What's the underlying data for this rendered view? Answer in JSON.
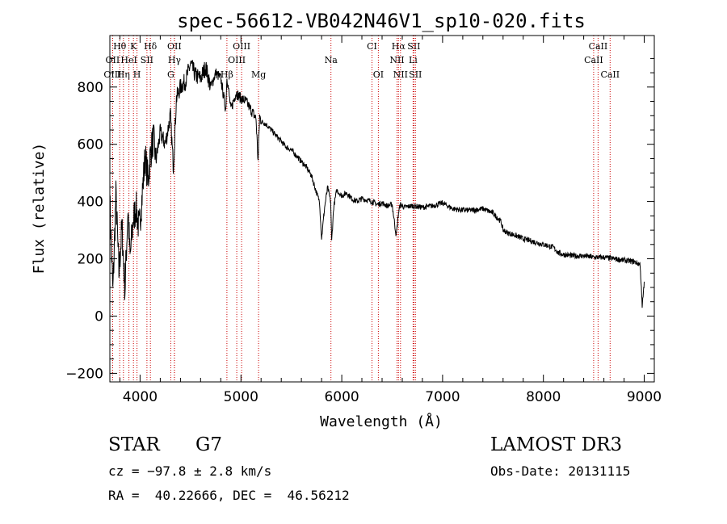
{
  "chart_data": {
    "type": "line",
    "title": "spec-56612-VB042N46V1_sp10-020.fits",
    "xlabel": "Wavelength (Å)",
    "ylabel": "Flux (relative)",
    "xlim": [
      3700,
      9100
    ],
    "ylim": [
      -230,
      980
    ],
    "xticks": [
      4000,
      5000,
      6000,
      7000,
      8000,
      9000
    ],
    "xtick_labels": [
      "4000",
      "5000",
      "6000",
      "7000",
      "8000",
      "9000"
    ],
    "yticks": [
      -200,
      0,
      200,
      400,
      600,
      800
    ],
    "ytick_labels": [
      "−200",
      "0",
      "200",
      "400",
      "600",
      "800"
    ],
    "series": [
      {
        "name": "spectrum",
        "x": [
          3700,
          3730,
          3760,
          3790,
          3820,
          3850,
          3880,
          3900,
          3930,
          3960,
          3990,
          4020,
          4050,
          4080,
          4100,
          4130,
          4160,
          4200,
          4250,
          4300,
          4330,
          4360,
          4400,
          4450,
          4500,
          4550,
          4600,
          4650,
          4700,
          4750,
          4800,
          4850,
          4861,
          4900,
          4950,
          5000,
          5050,
          5100,
          5150,
          5170,
          5185,
          5200,
          5250,
          5300,
          5350,
          5400,
          5450,
          5500,
          5550,
          5600,
          5650,
          5700,
          5750,
          5780,
          5800,
          5830,
          5860,
          5890,
          5900,
          5920,
          5950,
          6000,
          6050,
          6100,
          6150,
          6200,
          6250,
          6300,
          6350,
          6400,
          6450,
          6500,
          6540,
          6563,
          6580,
          6620,
          6700,
          6800,
          6900,
          7000,
          7100,
          7200,
          7300,
          7400,
          7500,
          7580,
          7600,
          7650,
          7700,
          7800,
          7900,
          8000,
          8100,
          8150,
          8200,
          8300,
          8400,
          8500,
          8600,
          8700,
          8800,
          8900,
          8960,
          8980,
          9000
        ],
        "y": [
          400,
          80,
          420,
          150,
          310,
          90,
          380,
          200,
          330,
          380,
          300,
          420,
          560,
          470,
          560,
          620,
          550,
          640,
          600,
          700,
          520,
          760,
          800,
          820,
          880,
          840,
          830,
          870,
          800,
          850,
          830,
          720,
          840,
          720,
          780,
          760,
          750,
          720,
          690,
          540,
          700,
          680,
          670,
          650,
          630,
          610,
          590,
          580,
          560,
          540,
          520,
          490,
          430,
          400,
          270,
          380,
          450,
          400,
          260,
          380,
          440,
          420,
          430,
          410,
          400,
          410,
          405,
          400,
          390,
          395,
          385,
          390,
          280,
          360,
          390,
          380,
          385,
          380,
          385,
          395,
          375,
          370,
          370,
          375,
          360,
          330,
          300,
          290,
          285,
          270,
          260,
          250,
          240,
          220,
          215,
          210,
          210,
          205,
          205,
          200,
          195,
          190,
          180,
          30,
          120
        ]
      }
    ],
    "lines": [
      {
        "label": "Hθ",
        "x": 3798,
        "row": 0
      },
      {
        "label": "K",
        "x": 3934,
        "row": 0
      },
      {
        "label": "Hδ",
        "x": 4102,
        "row": 0
      },
      {
        "label": "OII",
        "x": 4340,
        "row": 0
      },
      {
        "label": "OIII",
        "x": 5007,
        "row": 0
      },
      {
        "label": "CI",
        "x": 6300,
        "row": 0
      },
      {
        "label": "Hα",
        "x": 6563,
        "row": 0
      },
      {
        "label": "SII",
        "x": 6716,
        "row": 0
      },
      {
        "label": "CaII",
        "x": 8542,
        "row": 0
      },
      {
        "label": "OII",
        "x": 3727,
        "row": 1
      },
      {
        "label": "HeI",
        "x": 3889,
        "row": 1
      },
      {
        "label": "SII",
        "x": 4068,
        "row": 1
      },
      {
        "label": "Hγ",
        "x": 4340,
        "row": 1
      },
      {
        "label": "OIII",
        "x": 4959,
        "row": 1
      },
      {
        "label": "Na",
        "x": 5893,
        "row": 1
      },
      {
        "label": "NII",
        "x": 6548,
        "row": 1
      },
      {
        "label": "Li",
        "x": 6708,
        "row": 1
      },
      {
        "label": "CaII",
        "x": 8498,
        "row": 1
      },
      {
        "label": "OIII",
        "x": 3727,
        "row": 2
      },
      {
        "label": "Hη",
        "x": 3835,
        "row": 2
      },
      {
        "label": "H",
        "x": 3969,
        "row": 2
      },
      {
        "label": "G",
        "x": 4304,
        "row": 2
      },
      {
        "label": "Hβ",
        "x": 4861,
        "row": 2
      },
      {
        "label": "Mg",
        "x": 5175,
        "row": 2
      },
      {
        "label": "OI",
        "x": 6363,
        "row": 2
      },
      {
        "label": "NII",
        "x": 6583,
        "row": 2
      },
      {
        "label": "SII",
        "x": 6731,
        "row": 2
      },
      {
        "label": "CaII",
        "x": 8662,
        "row": 2
      }
    ]
  },
  "info": {
    "object_class": "STAR",
    "subclass": "G7",
    "survey": "LAMOST DR3",
    "cz": "cz = −97.8 ± 2.8 km/s",
    "obs_date": "Obs-Date: 20131115",
    "radec": "RA =  40.22666, DEC =  46.56212"
  }
}
